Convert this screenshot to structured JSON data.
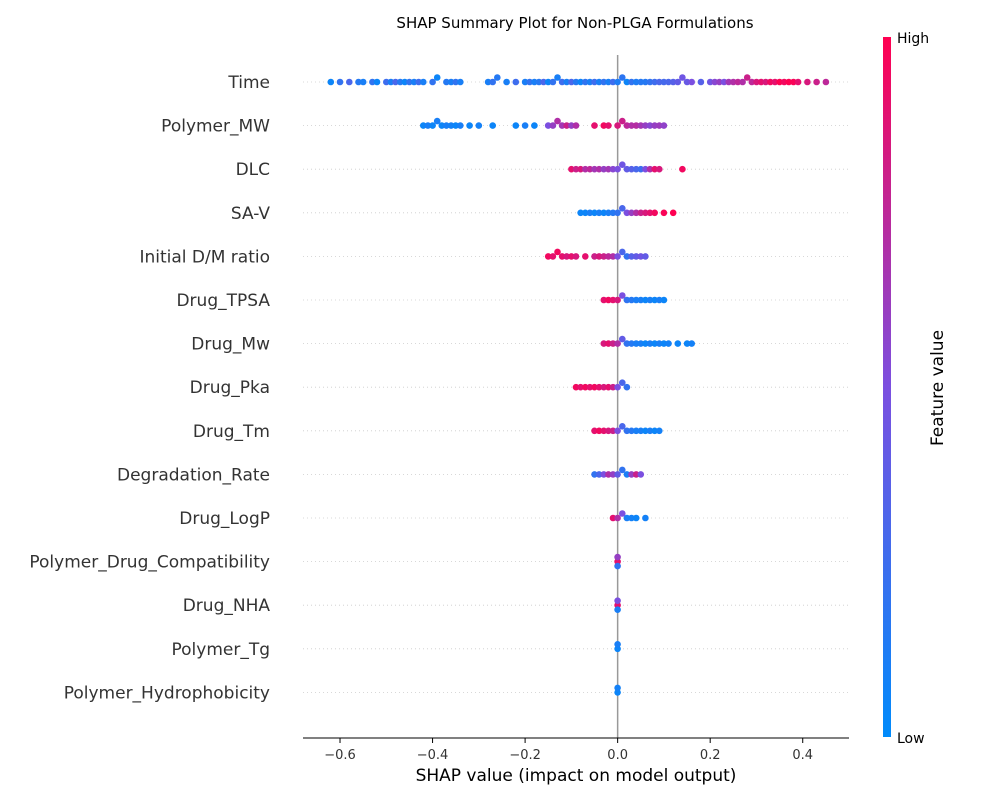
{
  "chart_data": {
    "type": "scatter",
    "title": "SHAP Summary Plot for Non-PLGA Formulations",
    "xlabel": "SHAP value (impact on model output)",
    "xlim": [
      -0.68,
      0.5
    ],
    "xticks": [
      -0.6,
      -0.4,
      -0.2,
      0.0,
      0.2,
      0.4
    ],
    "xtick_labels": [
      "−0.6",
      "−0.4",
      "−0.2",
      "0.0",
      "0.2",
      "0.4"
    ],
    "colorbar": {
      "label": "Feature value",
      "high_label": "High",
      "low_label": "Low",
      "low_color": "#008bfb",
      "mid_color": "#7b4fe0",
      "high_color": "#ff0051"
    },
    "grid": false,
    "features": [
      {
        "name": "Time",
        "points": [
          [
            -0.62,
            0.05
          ],
          [
            -0.6,
            0.2
          ],
          [
            -0.58,
            0.3
          ],
          [
            -0.56,
            0.15
          ],
          [
            -0.55,
            0.1
          ],
          [
            -0.53,
            0.2
          ],
          [
            -0.52,
            0.05
          ],
          [
            -0.5,
            0.25
          ],
          [
            -0.49,
            0.1
          ],
          [
            -0.48,
            0.3
          ],
          [
            -0.47,
            0.15
          ],
          [
            -0.46,
            0.05
          ],
          [
            -0.45,
            0.2
          ],
          [
            -0.44,
            0.1
          ],
          [
            -0.43,
            0.25
          ],
          [
            -0.42,
            0.1
          ],
          [
            -0.4,
            0.2
          ],
          [
            -0.39,
            0.05
          ],
          [
            -0.37,
            0.15
          ],
          [
            -0.36,
            0.1
          ],
          [
            -0.35,
            0.2
          ],
          [
            -0.34,
            0.1
          ],
          [
            -0.28,
            0.1
          ],
          [
            -0.27,
            0.2
          ],
          [
            -0.26,
            0.15
          ],
          [
            -0.24,
            0.1
          ],
          [
            -0.22,
            0.25
          ],
          [
            -0.2,
            0.1
          ],
          [
            -0.19,
            0.2
          ],
          [
            -0.18,
            0.1
          ],
          [
            -0.17,
            0.15
          ],
          [
            -0.16,
            0.3
          ],
          [
            -0.15,
            0.05
          ],
          [
            -0.14,
            0.2
          ],
          [
            -0.13,
            0.1
          ],
          [
            -0.12,
            0.25
          ],
          [
            -0.11,
            0.1
          ],
          [
            -0.1,
            0.3
          ],
          [
            -0.09,
            0.15
          ],
          [
            -0.08,
            0.05
          ],
          [
            -0.07,
            0.2
          ],
          [
            -0.06,
            0.1
          ],
          [
            -0.05,
            0.25
          ],
          [
            -0.04,
            0.1
          ],
          [
            -0.03,
            0.2
          ],
          [
            -0.02,
            0.1
          ],
          [
            -0.01,
            0.25
          ],
          [
            0.0,
            0.12
          ],
          [
            0.01,
            0.18
          ],
          [
            0.02,
            0.05
          ],
          [
            0.03,
            0.2
          ],
          [
            0.04,
            0.12
          ],
          [
            0.05,
            0.15
          ],
          [
            0.06,
            0.15
          ],
          [
            0.07,
            0.2
          ],
          [
            0.08,
            0.25
          ],
          [
            0.09,
            0.3
          ],
          [
            0.1,
            0.28
          ],
          [
            0.11,
            0.3
          ],
          [
            0.12,
            0.35
          ],
          [
            0.13,
            0.4
          ],
          [
            0.14,
            0.45
          ],
          [
            0.15,
            0.42
          ],
          [
            0.16,
            0.5
          ],
          [
            0.18,
            0.35
          ],
          [
            0.2,
            0.45
          ],
          [
            0.21,
            0.55
          ],
          [
            0.22,
            0.6
          ],
          [
            0.23,
            0.5
          ],
          [
            0.24,
            0.65
          ],
          [
            0.25,
            0.7
          ],
          [
            0.26,
            0.75
          ],
          [
            0.27,
            0.7
          ],
          [
            0.28,
            0.8
          ],
          [
            0.29,
            0.75
          ],
          [
            0.3,
            0.85
          ],
          [
            0.31,
            0.9
          ],
          [
            0.32,
            0.85
          ],
          [
            0.33,
            0.95
          ],
          [
            0.34,
            0.9
          ],
          [
            0.35,
            1.0
          ],
          [
            0.36,
            0.95
          ],
          [
            0.37,
            1.0
          ],
          [
            0.38,
            0.98
          ],
          [
            0.39,
            0.9
          ],
          [
            0.41,
            0.85
          ],
          [
            0.43,
            0.8
          ],
          [
            0.45,
            0.75
          ]
        ]
      },
      {
        "name": "Polymer_MW",
        "points": [
          [
            -0.42,
            0.05
          ],
          [
            -0.41,
            0.1
          ],
          [
            -0.4,
            0.05
          ],
          [
            -0.39,
            0.1
          ],
          [
            -0.38,
            0.05
          ],
          [
            -0.37,
            0.1
          ],
          [
            -0.36,
            0.08
          ],
          [
            -0.35,
            0.05
          ],
          [
            -0.34,
            0.1
          ],
          [
            -0.32,
            0.05
          ],
          [
            -0.3,
            0.08
          ],
          [
            -0.27,
            0.05
          ],
          [
            -0.22,
            0.05
          ],
          [
            -0.2,
            0.1
          ],
          [
            -0.18,
            0.05
          ],
          [
            -0.15,
            0.5
          ],
          [
            -0.14,
            0.6
          ],
          [
            -0.13,
            0.7
          ],
          [
            -0.12,
            0.65
          ],
          [
            -0.11,
            0.8
          ],
          [
            -0.1,
            0.6
          ],
          [
            -0.09,
            0.7
          ],
          [
            -0.05,
            0.9
          ],
          [
            -0.03,
            0.95
          ],
          [
            -0.02,
            0.9
          ],
          [
            0.0,
            0.85
          ],
          [
            0.01,
            0.8
          ],
          [
            0.02,
            0.75
          ],
          [
            0.03,
            0.7
          ],
          [
            0.04,
            0.72
          ],
          [
            0.05,
            0.65
          ],
          [
            0.06,
            0.6
          ],
          [
            0.07,
            0.55
          ],
          [
            0.08,
            0.6
          ],
          [
            0.09,
            0.62
          ],
          [
            0.1,
            0.58
          ]
        ]
      },
      {
        "name": "DLC",
        "points": [
          [
            -0.1,
            0.9
          ],
          [
            -0.09,
            0.8
          ],
          [
            -0.08,
            0.85
          ],
          [
            -0.07,
            0.7
          ],
          [
            -0.06,
            0.75
          ],
          [
            -0.05,
            0.65
          ],
          [
            -0.04,
            0.7
          ],
          [
            -0.03,
            0.6
          ],
          [
            -0.02,
            0.65
          ],
          [
            -0.01,
            0.55
          ],
          [
            0.0,
            0.5
          ],
          [
            0.01,
            0.45
          ],
          [
            0.02,
            0.4
          ],
          [
            0.03,
            0.35
          ],
          [
            0.04,
            0.3
          ],
          [
            0.05,
            0.25
          ],
          [
            0.06,
            0.5
          ],
          [
            0.07,
            0.7
          ],
          [
            0.08,
            0.9
          ],
          [
            0.09,
            0.85
          ],
          [
            0.14,
            0.95
          ]
        ]
      },
      {
        "name": "SA-V",
        "points": [
          [
            -0.08,
            0.05
          ],
          [
            -0.07,
            0.05
          ],
          [
            -0.06,
            0.1
          ],
          [
            -0.05,
            0.05
          ],
          [
            -0.04,
            0.1
          ],
          [
            -0.03,
            0.05
          ],
          [
            -0.02,
            0.1
          ],
          [
            -0.01,
            0.15
          ],
          [
            0.0,
            0.2
          ],
          [
            0.01,
            0.3
          ],
          [
            0.02,
            0.5
          ],
          [
            0.03,
            0.6
          ],
          [
            0.04,
            0.7
          ],
          [
            0.05,
            0.8
          ],
          [
            0.06,
            0.85
          ],
          [
            0.07,
            0.9
          ],
          [
            0.08,
            0.95
          ],
          [
            0.1,
            0.98
          ],
          [
            0.12,
            1.0
          ]
        ]
      },
      {
        "name": "Initial D/M ratio",
        "points": [
          [
            -0.15,
            0.95
          ],
          [
            -0.14,
            0.9
          ],
          [
            -0.13,
            0.95
          ],
          [
            -0.12,
            0.9
          ],
          [
            -0.11,
            0.85
          ],
          [
            -0.1,
            0.9
          ],
          [
            -0.09,
            0.85
          ],
          [
            -0.07,
            0.9
          ],
          [
            -0.05,
            0.8
          ],
          [
            -0.04,
            0.85
          ],
          [
            -0.03,
            0.8
          ],
          [
            -0.02,
            0.75
          ],
          [
            -0.01,
            0.7
          ],
          [
            0.0,
            0.5
          ],
          [
            0.01,
            0.3
          ],
          [
            0.02,
            0.2
          ],
          [
            0.03,
            0.35
          ],
          [
            0.04,
            0.4
          ],
          [
            0.05,
            0.45
          ],
          [
            0.06,
            0.4
          ]
        ]
      },
      {
        "name": "Drug_TPSA",
        "points": [
          [
            -0.03,
            0.9
          ],
          [
            -0.02,
            0.95
          ],
          [
            -0.01,
            0.9
          ],
          [
            0.0,
            0.85
          ],
          [
            0.01,
            0.5
          ],
          [
            0.02,
            0.2
          ],
          [
            0.03,
            0.15
          ],
          [
            0.04,
            0.1
          ],
          [
            0.05,
            0.1
          ],
          [
            0.06,
            0.05
          ],
          [
            0.07,
            0.1
          ],
          [
            0.08,
            0.05
          ],
          [
            0.09,
            0.1
          ],
          [
            0.1,
            0.05
          ]
        ]
      },
      {
        "name": "Drug_Mw",
        "points": [
          [
            -0.03,
            0.85
          ],
          [
            -0.02,
            0.9
          ],
          [
            -0.01,
            0.8
          ],
          [
            0.0,
            0.7
          ],
          [
            0.01,
            0.4
          ],
          [
            0.02,
            0.2
          ],
          [
            0.03,
            0.15
          ],
          [
            0.04,
            0.1
          ],
          [
            0.05,
            0.1
          ],
          [
            0.06,
            0.05
          ],
          [
            0.07,
            0.1
          ],
          [
            0.08,
            0.05
          ],
          [
            0.09,
            0.1
          ],
          [
            0.1,
            0.05
          ],
          [
            0.11,
            0.08
          ],
          [
            0.13,
            0.05
          ],
          [
            0.15,
            0.05
          ],
          [
            0.16,
            0.08
          ]
        ]
      },
      {
        "name": "Drug_Pka",
        "points": [
          [
            -0.09,
            0.95
          ],
          [
            -0.08,
            0.9
          ],
          [
            -0.07,
            0.95
          ],
          [
            -0.06,
            0.9
          ],
          [
            -0.05,
            0.95
          ],
          [
            -0.04,
            0.9
          ],
          [
            -0.03,
            0.85
          ],
          [
            -0.02,
            0.9
          ],
          [
            -0.01,
            0.8
          ],
          [
            0.0,
            0.5
          ],
          [
            0.01,
            0.3
          ],
          [
            0.02,
            0.2
          ]
        ]
      },
      {
        "name": "Drug_Tm",
        "points": [
          [
            -0.05,
            0.9
          ],
          [
            -0.04,
            0.95
          ],
          [
            -0.03,
            0.9
          ],
          [
            -0.02,
            0.85
          ],
          [
            -0.01,
            0.8
          ],
          [
            0.0,
            0.5
          ],
          [
            0.01,
            0.3
          ],
          [
            0.02,
            0.2
          ],
          [
            0.03,
            0.15
          ],
          [
            0.04,
            0.1
          ],
          [
            0.05,
            0.1
          ],
          [
            0.06,
            0.05
          ],
          [
            0.07,
            0.1
          ],
          [
            0.08,
            0.05
          ],
          [
            0.09,
            0.08
          ]
        ]
      },
      {
        "name": "Degradation_Rate",
        "points": [
          [
            -0.05,
            0.2
          ],
          [
            -0.04,
            0.3
          ],
          [
            -0.03,
            0.5
          ],
          [
            -0.02,
            0.7
          ],
          [
            -0.01,
            0.6
          ],
          [
            0.0,
            0.4
          ],
          [
            0.01,
            0.2
          ],
          [
            0.02,
            0.1
          ],
          [
            0.03,
            0.6
          ],
          [
            0.04,
            0.8
          ],
          [
            0.05,
            0.5
          ]
        ]
      },
      {
        "name": "Drug_LogP",
        "points": [
          [
            -0.01,
            0.9
          ],
          [
            0.0,
            0.7
          ],
          [
            0.01,
            0.5
          ],
          [
            0.02,
            0.1
          ],
          [
            0.03,
            0.08
          ],
          [
            0.04,
            0.05
          ],
          [
            0.06,
            0.08
          ]
        ]
      },
      {
        "name": "Polymer_Drug_Compatibility",
        "points": [
          [
            0.0,
            0.9
          ],
          [
            0.0,
            0.6
          ],
          [
            0.0,
            0.2
          ]
        ]
      },
      {
        "name": "Drug_NHA",
        "points": [
          [
            0.0,
            0.9
          ],
          [
            0.0,
            0.5
          ],
          [
            0.0,
            0.1
          ]
        ]
      },
      {
        "name": "Polymer_Tg",
        "points": [
          [
            0.0,
            0.05
          ],
          [
            0.0,
            0.1
          ]
        ]
      },
      {
        "name": "Polymer_Hydrophobicity",
        "points": [
          [
            0.0,
            0.05
          ],
          [
            0.0,
            0.08
          ]
        ]
      }
    ]
  }
}
